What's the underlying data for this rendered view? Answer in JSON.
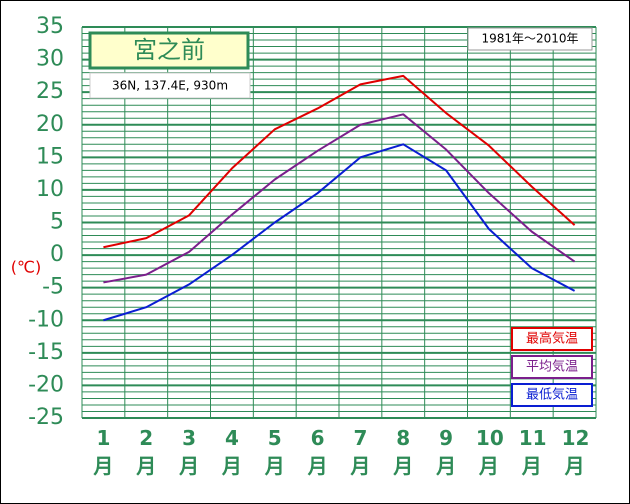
{
  "chart_data": {
    "type": "line",
    "title": "宮之前",
    "subtitle": "36N,  137.4E,  930m",
    "period": "1981年〜2010年",
    "ylabel": "(℃)",
    "categories": [
      "1月",
      "2月",
      "3月",
      "4月",
      "5月",
      "6月",
      "7月",
      "8月",
      "9月",
      "10月",
      "11月",
      "12月"
    ],
    "series": [
      {
        "name": "最高気温",
        "color": "#e00000",
        "values": [
          1.2,
          2.6,
          6.1,
          13.3,
          19.3,
          22.5,
          26.2,
          27.5,
          21.8,
          16.8,
          10.5,
          4.6
        ]
      },
      {
        "name": "平均気温",
        "color": "#7b1f8c",
        "values": [
          -4.2,
          -3,
          0.5,
          6.2,
          11.6,
          16,
          20,
          21.6,
          16.2,
          9.5,
          3.6,
          -1
        ]
      },
      {
        "name": "最低気温",
        "color": "#0a1ed2",
        "values": [
          -10,
          -8,
          -4.5,
          0,
          5,
          9.5,
          15,
          17,
          13,
          4,
          -2,
          -5.5
        ]
      }
    ],
    "ylim": [
      -25,
      35
    ],
    "yticks": [
      -25,
      -20,
      -15,
      -10,
      -5,
      0,
      5,
      10,
      15,
      20,
      25,
      30,
      35
    ],
    "grid": true
  }
}
